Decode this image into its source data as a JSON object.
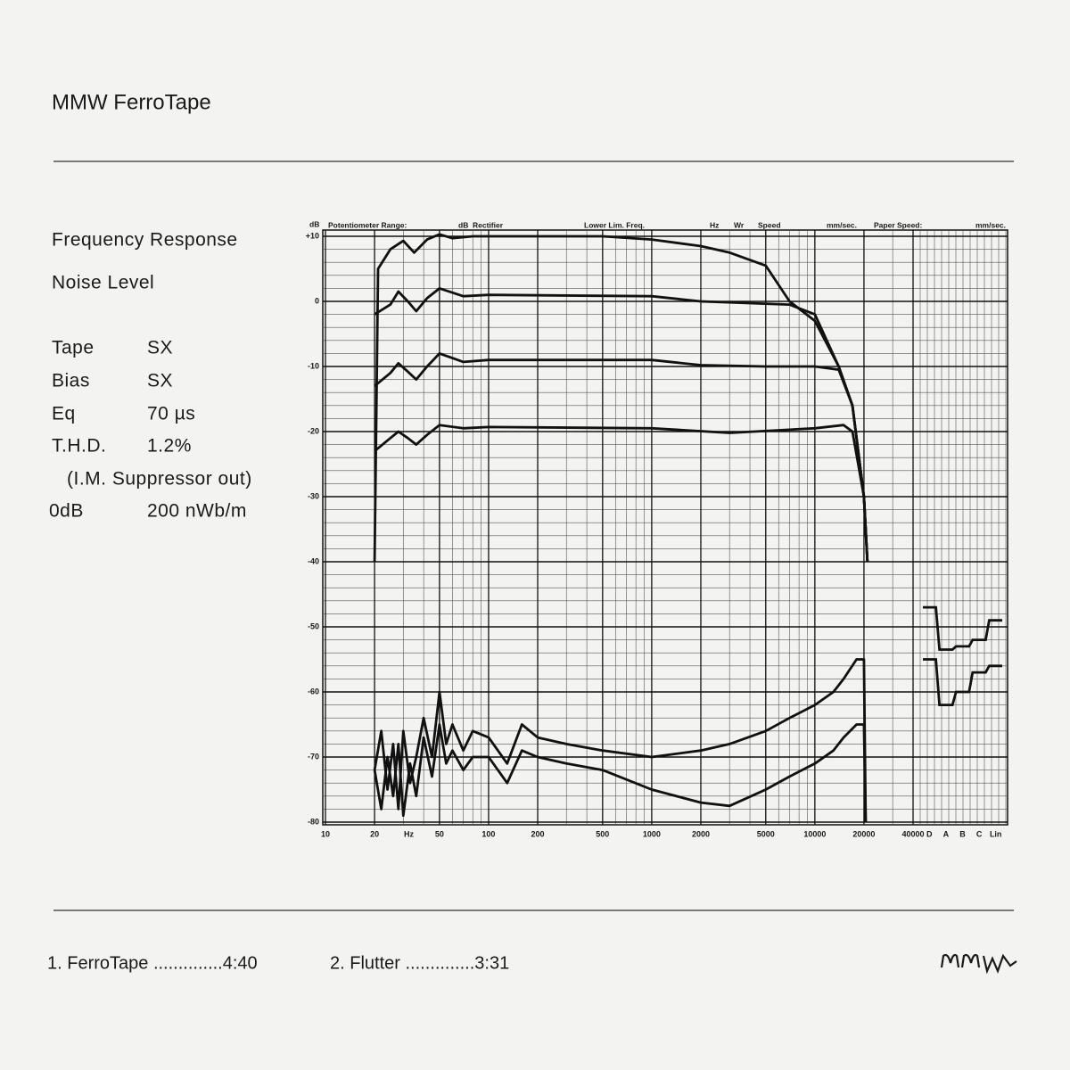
{
  "header": {
    "title": "MMW  FerroTape"
  },
  "specs": {
    "headings": [
      "Frequency Response",
      "Noise Level"
    ],
    "rows": [
      [
        "Tape",
        "SX"
      ],
      [
        "Bias",
        "SX"
      ],
      [
        "Eq",
        "70 µs"
      ],
      [
        "T.H.D.",
        "1.2%"
      ]
    ],
    "note": "(I.M. Suppressor out)",
    "reference": [
      "0dB",
      "200 nWb/m"
    ]
  },
  "chart_data": {
    "type": "line",
    "header_fields": [
      "dB",
      "Potentiometer Range:",
      "dB",
      "Rectifier",
      "Lower Lim. Freq.",
      "Hz",
      "Wr",
      "Speed",
      "mm/sec.",
      "Paper Speed:",
      "mm/sec."
    ],
    "xlabel": "Hz",
    "xscale": "log",
    "xlim": [
      10,
      40000
    ],
    "xticks": [
      10,
      20,
      50,
      100,
      200,
      500,
      1000,
      2000,
      5000,
      10000,
      20000,
      40000
    ],
    "ylim": [
      -80,
      10
    ],
    "yticks": [
      {
        "value": 10,
        "label": "+10"
      },
      0,
      -10,
      -20,
      -30,
      -40,
      -50,
      -60,
      -70,
      -80
    ],
    "grid": true,
    "color": "#111111",
    "series": [
      {
        "x": [
          20,
          21,
          25,
          30,
          35,
          42,
          50,
          60,
          80,
          100,
          200,
          500,
          1000,
          2000,
          3000,
          5000,
          7000,
          10000,
          14000,
          17000,
          20000,
          21000
        ],
        "values": [
          -40,
          5,
          8,
          9.3,
          7.5,
          9.5,
          10.3,
          9.7,
          10,
          10,
          10,
          10,
          9.5,
          8.5,
          7.5,
          5.5,
          0,
          -3,
          -10,
          -16,
          -30,
          -40
        ]
      },
      {
        "x": [
          20,
          25,
          28,
          32,
          36,
          42,
          50,
          70,
          100,
          1000,
          2000,
          7000,
          10000,
          14000,
          17000,
          20000,
          21000
        ],
        "values": [
          -2,
          -0.5,
          1.5,
          0,
          -1.5,
          0.5,
          2,
          0.8,
          1,
          0.8,
          0,
          -0.5,
          -2,
          -10,
          -16,
          -30,
          -40
        ]
      },
      {
        "x": [
          20,
          25,
          28,
          32,
          36,
          42,
          50,
          70,
          100,
          1000,
          2000,
          5000,
          10000,
          14000,
          17000,
          20000,
          21000
        ],
        "values": [
          -13,
          -11,
          -9.5,
          -10.8,
          -12,
          -10,
          -8,
          -9.3,
          -9,
          -9,
          -9.8,
          -10,
          -10,
          -10.5,
          -16,
          -30,
          -40
        ]
      },
      {
        "x": [
          20,
          25,
          28,
          32,
          36,
          42,
          50,
          70,
          100,
          1000,
          3000,
          10000,
          15000,
          17000,
          20000,
          21000
        ],
        "values": [
          -23,
          -21,
          -20,
          -21,
          -22,
          -20.5,
          -19,
          -19.5,
          -19.3,
          -19.5,
          -20.2,
          -19.5,
          -19,
          -20,
          -30,
          -40
        ]
      },
      {
        "x": [
          20,
          22,
          24,
          26,
          28,
          30,
          33,
          36,
          40,
          45,
          50,
          55,
          60,
          70,
          80,
          100,
          130,
          160,
          200,
          300,
          500,
          1000,
          2000,
          3000,
          5000,
          7000,
          10000,
          13000,
          15000,
          18000,
          20000,
          20500
        ],
        "values": [
          -72,
          -66,
          -75,
          -68,
          -78,
          -66,
          -74,
          -70,
          -64,
          -70,
          -60,
          -68,
          -65,
          -69,
          -66,
          -67,
          -71,
          -65,
          -67,
          -68,
          -69,
          -70,
          -69,
          -68,
          -66,
          -64,
          -62,
          -60,
          -58,
          -55,
          -55,
          -80
        ]
      },
      {
        "x": [
          20,
          22,
          24,
          26,
          28,
          30,
          33,
          36,
          40,
          45,
          50,
          55,
          60,
          70,
          80,
          100,
          130,
          160,
          200,
          300,
          500,
          1000,
          2000,
          3000,
          5000,
          7000,
          10000,
          13000,
          15000,
          18000,
          20000,
          20500
        ],
        "values": [
          -72,
          -78,
          -70,
          -76,
          -68,
          -79,
          -71,
          -76,
          -67,
          -73,
          -65,
          -71,
          -69,
          -72,
          -70,
          -70,
          -74,
          -69,
          -70,
          -71,
          -72,
          -75,
          -77,
          -77.5,
          -75,
          -73,
          -71,
          -69,
          -67,
          -65,
          -65,
          -80
        ]
      }
    ],
    "weightings": {
      "categories": [
        "D",
        "A",
        "B",
        "C",
        "Lin"
      ],
      "series": [
        {
          "values": [
            -47,
            -53.5,
            -53,
            -52,
            -49
          ]
        },
        {
          "values": [
            -55,
            -62,
            -60,
            -57,
            -56
          ]
        }
      ]
    }
  },
  "tracks": [
    "1. FerroTape ..............4:40",
    "2. Flutter ..............3:31"
  ]
}
